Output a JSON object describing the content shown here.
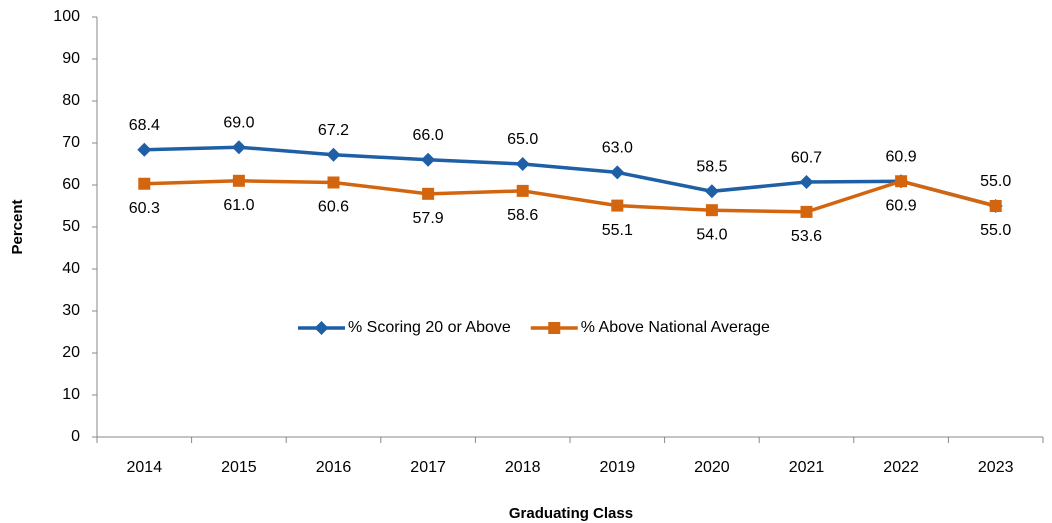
{
  "chart_data": {
    "type": "line",
    "categories": [
      "2014",
      "2015",
      "2016",
      "2017",
      "2018",
      "2019",
      "2020",
      "2021",
      "2022",
      "2023"
    ],
    "series": [
      {
        "name": "% Scoring 20 or Above",
        "color": "#1f5fa6",
        "marker": "diamond",
        "values": [
          68.4,
          69.0,
          67.2,
          66.0,
          65.0,
          63.0,
          58.5,
          60.7,
          60.9,
          55.0
        ],
        "value_labels": [
          "68.4",
          "69.0",
          "67.2",
          "66.0",
          "65.0",
          "63.0",
          "58.5",
          "60.7",
          "60.9",
          "55.0"
        ]
      },
      {
        "name": "% Above National Average",
        "color": "#d4650f",
        "marker": "square",
        "values": [
          60.3,
          61.0,
          60.6,
          57.9,
          58.6,
          55.1,
          54.0,
          53.6,
          60.9,
          55.0
        ],
        "value_labels": [
          "60.3",
          "61.0",
          "60.6",
          "57.9",
          "58.6",
          "55.1",
          "54.0",
          "53.6",
          "60.9",
          "55.0"
        ]
      }
    ],
    "x_label": "Graduating Class",
    "y_label": "Percent",
    "ylim": [
      0,
      100
    ],
    "yticks": [
      0,
      10,
      20,
      30,
      40,
      50,
      60,
      70,
      80,
      90,
      100
    ],
    "grid": false,
    "legend": "center"
  }
}
